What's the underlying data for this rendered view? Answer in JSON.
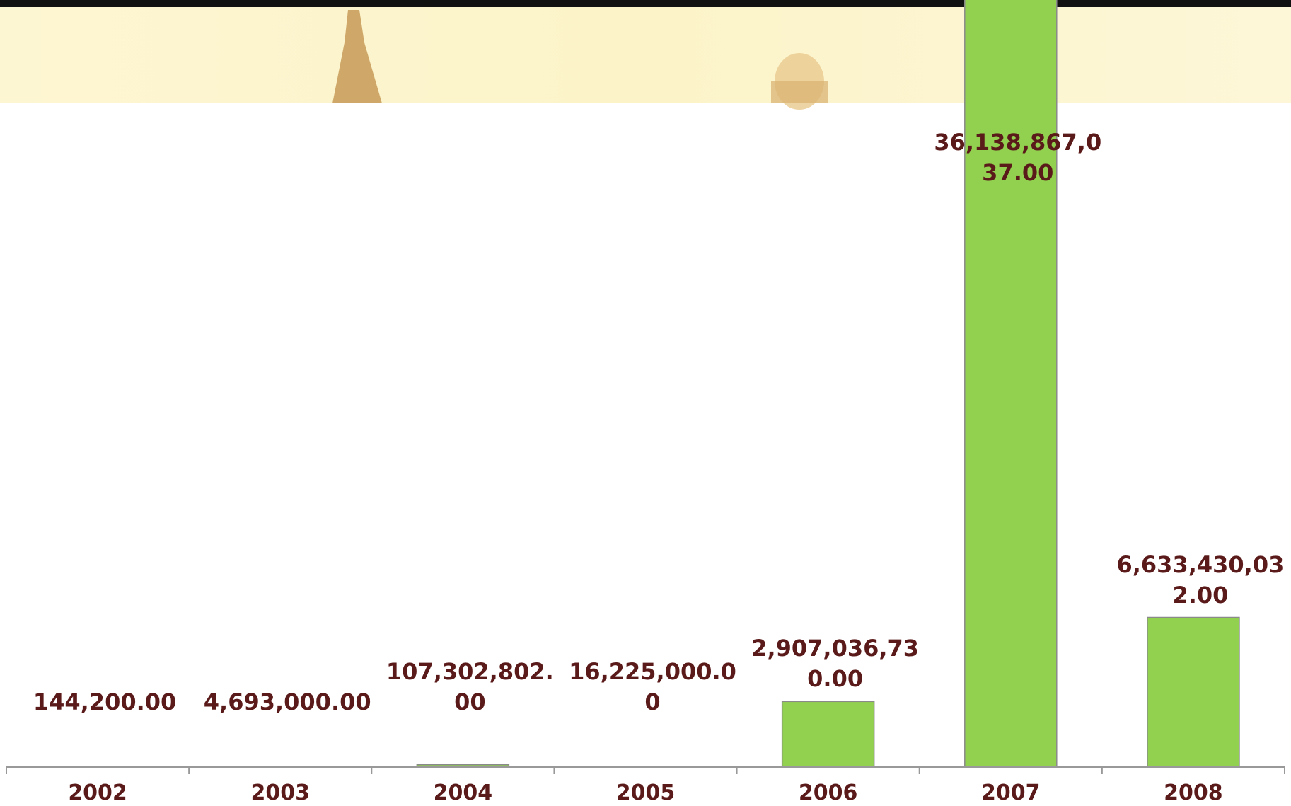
{
  "chart_data": {
    "type": "bar",
    "categories": [
      "2002",
      "2003",
      "2004",
      "2005",
      "2006",
      "2007",
      "2008"
    ],
    "values": [
      144200,
      4693000,
      107302802,
      16225000,
      2907036730,
      36138867037,
      6633430032
    ],
    "value_labels": [
      "144,200.00",
      "4,693,000.00",
      "107,302,802.00",
      "16,225,000.00",
      "2,907,036,730.00",
      "36,138,867,037.00",
      "6,633,430,032.00"
    ],
    "color": "#92d050",
    "ylim": [
      0,
      34000000000
    ]
  }
}
